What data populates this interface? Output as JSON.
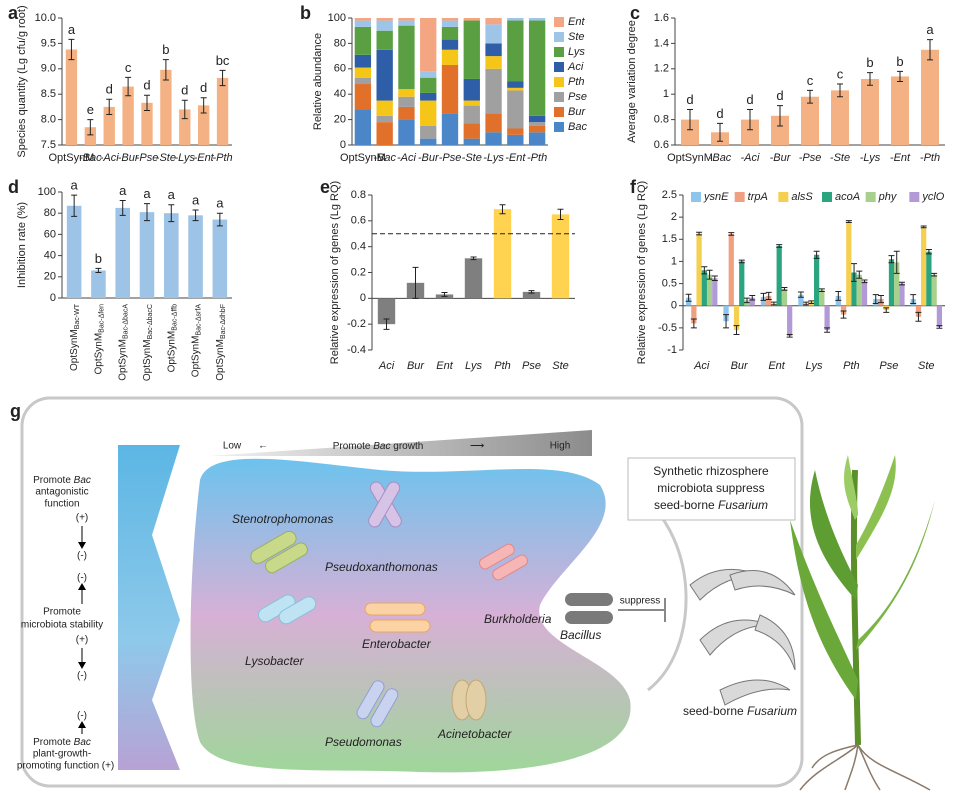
{
  "chart_data": [
    {
      "panel": "a",
      "type": "bar",
      "ylabel": "Species quantity (Lg cfu/g root)",
      "color": "#f4b183",
      "categories": [
        "OptSynM",
        "-Bac",
        "-Aci",
        "-Bur",
        "-Pse",
        "-Ste",
        "-Lys",
        "-Ent",
        "-Pth"
      ],
      "values": [
        9.38,
        7.85,
        8.25,
        8.65,
        8.33,
        8.98,
        8.2,
        8.28,
        8.82
      ],
      "errors": [
        0.2,
        0.15,
        0.15,
        0.18,
        0.15,
        0.2,
        0.18,
        0.15,
        0.15
      ],
      "letters": [
        "a",
        "e",
        "d",
        "c",
        "d",
        "b",
        "d",
        "d",
        "bc"
      ],
      "ylim": [
        7.5,
        10
      ],
      "yticks": [
        7.5,
        {
          "value": 8,
          "label": "8.0"
        },
        8.5,
        {
          "value": 9,
          "label": "9.0"
        },
        9.5,
        {
          "value": 10,
          "label": "10.0"
        }
      ]
    },
    {
      "panel": "b",
      "type": "stacked_bar",
      "ylabel": "Relative abundance",
      "categories": [
        "OptSynM",
        "-Bac",
        "-Aci",
        "-Bur",
        "-Pse",
        "-Ste",
        "-Lys",
        "-Ent",
        "-Pth"
      ],
      "series": [
        {
          "name": "Bac",
          "color": "#4a86c8",
          "values": [
            28,
            0,
            20,
            5,
            25,
            5,
            10,
            8,
            10
          ]
        },
        {
          "name": "Bur",
          "color": "#e0702a",
          "values": [
            20,
            18,
            10,
            0,
            38,
            12,
            15,
            5,
            5
          ]
        },
        {
          "name": "Pse",
          "color": "#a0a0a0",
          "values": [
            5,
            5,
            8,
            10,
            0,
            14,
            35,
            30,
            3
          ]
        },
        {
          "name": "Pth",
          "color": "#f5c518",
          "values": [
            8,
            12,
            6,
            20,
            12,
            4,
            10,
            2,
            0
          ]
        },
        {
          "name": "Aci",
          "color": "#2f5ea8",
          "values": [
            10,
            40,
            0,
            6,
            8,
            17,
            10,
            5,
            5
          ]
        },
        {
          "name": "Lys",
          "color": "#5aa042",
          "values": [
            22,
            15,
            50,
            12,
            10,
            46,
            0,
            48,
            75
          ]
        },
        {
          "name": "Ste",
          "color": "#9ec5e8",
          "values": [
            5,
            8,
            4,
            5,
            5,
            0,
            15,
            2,
            2
          ]
        },
        {
          "name": "Ent",
          "color": "#f4a582",
          "values": [
            2,
            2,
            2,
            42,
            2,
            2,
            5,
            0,
            0
          ]
        }
      ],
      "ylim": [
        0,
        100
      ],
      "yticks": [
        0,
        20,
        40,
        60,
        80,
        100
      ]
    },
    {
      "panel": "c",
      "type": "bar",
      "ylabel": "Average variation degree",
      "color": "#f4b183",
      "categories": [
        "OptSynM",
        "-Bac",
        "-Aci",
        "-Bur",
        "-Pse",
        "-Ste",
        "-Lys",
        "-Ent",
        "-Pth"
      ],
      "values": [
        0.8,
        0.7,
        0.8,
        0.83,
        0.98,
        1.03,
        1.12,
        1.14,
        1.35
      ],
      "errors": [
        0.08,
        0.07,
        0.08,
        0.08,
        0.05,
        0.05,
        0.05,
        0.04,
        0.08
      ],
      "letters": [
        "d",
        "d",
        "d",
        "d",
        "c",
        "c",
        "b",
        "b",
        "a"
      ],
      "ylim": [
        0.6,
        1.6
      ],
      "yticks": [
        0.6,
        0.8,
        1,
        1.2,
        1.4,
        1.6
      ]
    },
    {
      "panel": "d",
      "type": "bar",
      "ylabel": "Inhibition rate (%)",
      "color": "#9dc3e6",
      "category_prefix": "OptSynM",
      "categories": [
        "Bac-WT",
        "Bac-Δfen",
        "Bac-ΔbacA",
        "Bac-ΔbacC",
        "Bac-Δffb",
        "Bac-ΔsrfA",
        "Bac-ΔdhbF"
      ],
      "values": [
        87,
        26,
        85,
        81,
        80,
        78,
        74
      ],
      "errors": [
        10,
        2,
        7,
        8,
        8,
        5,
        6
      ],
      "letters": [
        "a",
        "b",
        "a",
        "a",
        "a",
        "a",
        "a"
      ],
      "ylim": [
        0,
        100
      ],
      "yticks": [
        0,
        20,
        40,
        60,
        80,
        100
      ]
    },
    {
      "panel": "e",
      "type": "bar",
      "ylabel": "Relative expression of genes (Lg RQ)",
      "categories": [
        "Aci",
        "Bur",
        "Ent",
        "Lys",
        "Pth",
        "Pse",
        "Ste"
      ],
      "values": [
        -0.2,
        0.12,
        0.03,
        0.31,
        0.69,
        0.05,
        0.65
      ],
      "errors": [
        0.04,
        0.12,
        0.015,
        0.01,
        0.035,
        0.01,
        0.04
      ],
      "colors": [
        "#7f7f7f",
        "#7f7f7f",
        "#7f7f7f",
        "#7f7f7f",
        "#ffd34f",
        "#7f7f7f",
        "#ffd34f"
      ],
      "reference_line": 0.5,
      "ylim": [
        -0.4,
        0.8
      ],
      "yticks": [
        -0.4,
        -0.2,
        0,
        0.2,
        0.4,
        0.6,
        0.8
      ]
    },
    {
      "panel": "f",
      "type": "grouped_bar",
      "ylabel": "Relative expression of genes (Lg RQ)",
      "categories": [
        "Aci",
        "Bur",
        "Ent",
        "Lys",
        "Pth",
        "Pse",
        "Ste"
      ],
      "series": [
        {
          "name": "ysnE",
          "color": "#8ec5ea",
          "values": [
            0.18,
            -0.35,
            0.2,
            0.25,
            0.22,
            0.15,
            0.15
          ],
          "errors": [
            0.08,
            0.15,
            0.08,
            0.06,
            0.1,
            0.1,
            0.1
          ]
        },
        {
          "name": "trpA",
          "color": "#f0a080",
          "values": [
            -0.4,
            1.62,
            0.22,
            0.05,
            -0.2,
            0.15,
            -0.25
          ],
          "errors": [
            0.1,
            0.03,
            0.08,
            0.03,
            0.08,
            0.08,
            0.1
          ]
        },
        {
          "name": "alsS",
          "color": "#f5cf4f",
          "values": [
            1.63,
            -0.55,
            0.05,
            0.08,
            1.9,
            -0.1,
            1.78
          ],
          "errors": [
            0.03,
            0.1,
            0.03,
            0.03,
            0.02,
            0.05,
            0.02
          ]
        },
        {
          "name": "acoA",
          "color": "#2aa57f",
          "values": [
            0.8,
            1.0,
            1.35,
            1.15,
            0.75,
            1.05,
            1.22
          ],
          "errors": [
            0.08,
            0.03,
            0.03,
            0.08,
            0.2,
            0.08,
            0.05
          ]
        },
        {
          "name": "phy",
          "color": "#a8d08d",
          "values": [
            0.7,
            0.12,
            0.38,
            0.35,
            0.7,
            0.98,
            0.7
          ],
          "errors": [
            0.1,
            0.05,
            0.03,
            0.03,
            0.08,
            0.25,
            0.03
          ]
        },
        {
          "name": "yclO",
          "color": "#b29ad6",
          "values": [
            0.62,
            0.18,
            -0.68,
            -0.55,
            0.55,
            0.5,
            -0.48
          ],
          "errors": [
            0.05,
            0.05,
            0.03,
            0.05,
            0.03,
            0.03,
            0.03
          ]
        }
      ],
      "ylim": [
        -1,
        2.5
      ],
      "yticks": [
        -1,
        -0.5,
        0,
        0.5,
        1,
        1.5,
        2,
        2.5
      ]
    }
  ],
  "diagram": {
    "label": "g",
    "scale": {
      "low": "Low",
      "title": [
        "Promote",
        "Bac",
        "growth"
      ],
      "high": "High"
    },
    "left": [
      {
        "lines": [
          "Promote",
          "Bac",
          "antagonistic",
          "function"
        ],
        "signs": [
          "(+)",
          "(-)"
        ]
      },
      {
        "lines": [
          "Promote",
          "microbiota stability"
        ],
        "signs": [
          "(-)",
          "(+)",
          "(-)"
        ]
      },
      {
        "lines": [
          "Promote",
          "Bac",
          "plant-growth-",
          "promoting function"
        ],
        "signs": [
          "(-)",
          "(+)"
        ]
      }
    ],
    "bacteria": [
      "Stenotrophomonas",
      "Pseudoxanthomonas",
      "Burkholderia",
      "Lysobacter",
      "Enterobacter",
      "Pseudomonas",
      "Acinetobacter",
      "Bacillus"
    ],
    "box": [
      "Synthetic rhizosphere",
      "microbiota suppress",
      "seed-borne",
      "Fusarium"
    ],
    "suppress": "suppress",
    "fusarium": [
      "seed-borne",
      "Fusarium"
    ]
  }
}
